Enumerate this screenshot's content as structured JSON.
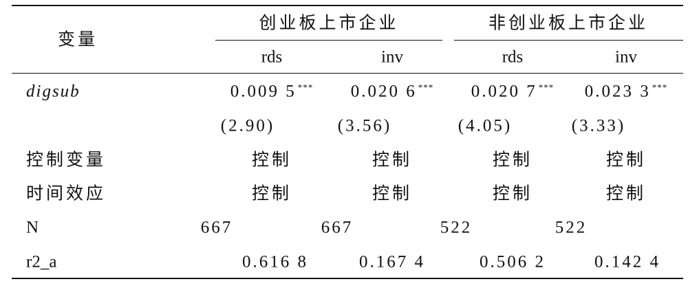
{
  "table": {
    "header": {
      "stub": "变量",
      "groups": [
        "创业板上市企业",
        "非创业板上市企业"
      ],
      "columns": [
        "rds",
        "inv",
        "rds",
        "inv"
      ]
    },
    "rows": [
      {
        "label": "digsub",
        "cells": [
          "0.009 5",
          "0.020 6",
          "0.020 7",
          "0.023 3"
        ],
        "stars": [
          "***",
          "***",
          "***",
          "***"
        ]
      },
      {
        "cells": [
          "(2.90)",
          "(3.56)",
          "(4.05)",
          "(3.33)"
        ]
      },
      {
        "label": "控制变量",
        "cells": [
          "控制",
          "控制",
          "控制",
          "控制"
        ]
      },
      {
        "label": "时间效应",
        "cells": [
          "控制",
          "控制",
          "控制",
          "控制"
        ]
      },
      {
        "label": "N",
        "cells": [
          "667",
          "667",
          "522",
          "522"
        ]
      },
      {
        "label": "r2_a",
        "cells": [
          "0.616 8",
          "0.167 4",
          "0.506 2",
          "0.142 4"
        ]
      }
    ]
  }
}
